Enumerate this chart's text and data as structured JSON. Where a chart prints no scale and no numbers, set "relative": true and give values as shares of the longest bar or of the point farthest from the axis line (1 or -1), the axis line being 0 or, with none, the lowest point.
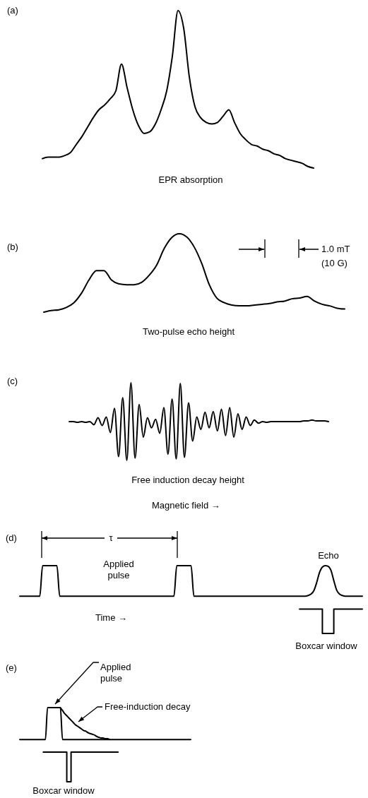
{
  "chart_data": [
    {
      "type": "line",
      "title": "(a)",
      "xlabel": "EPR absorption",
      "relative": true,
      "categories": [
        null,
        null,
        null,
        null,
        null,
        null,
        null,
        null,
        null,
        null,
        null,
        null,
        null,
        null,
        null,
        null,
        null,
        null,
        null,
        null,
        null,
        null,
        null,
        null,
        null,
        null,
        null,
        null,
        null,
        null,
        null,
        null,
        null,
        null,
        null,
        null,
        null,
        null,
        null,
        null,
        null,
        null,
        null,
        null,
        null,
        null,
        null,
        null,
        null
      ],
      "series": [
        {
          "color": "#000000",
          "values": [
            0.06,
            0.07,
            0.07,
            0.07,
            0.08,
            0.1,
            0.15,
            0.2,
            0.26,
            0.32,
            0.37,
            0.4,
            0.44,
            0.49,
            0.66,
            0.51,
            0.37,
            0.27,
            0.22,
            0.23,
            0.28,
            0.37,
            0.49,
            0.71,
            1,
            0.89,
            0.58,
            0.39,
            0.32,
            0.29,
            0.28,
            0.29,
            0.33,
            0.37,
            0.29,
            0.22,
            0.18,
            0.15,
            0.14,
            0.12,
            0.11,
            0.09,
            0.08,
            0.06,
            0.05,
            0.04,
            0.03,
            0.01,
            0
          ]
        }
      ]
    },
    {
      "type": "line",
      "title": "(b)",
      "xlabel": "Two-pulse echo height",
      "relative": true,
      "annotations": [
        "1.0 mT",
        "(10 G)"
      ],
      "categories": [
        null,
        null,
        null,
        null,
        null,
        null,
        null,
        null,
        null,
        null,
        null,
        null,
        null,
        null,
        null,
        null,
        null,
        null,
        null,
        null,
        null,
        null,
        null,
        null,
        null,
        null,
        null,
        null,
        null,
        null,
        null,
        null,
        null,
        null,
        null,
        null,
        null,
        null,
        null,
        null,
        null
      ],
      "series": [
        {
          "color": "#000000",
          "values": [
            0,
            0.02,
            0.03,
            0.06,
            0.12,
            0.24,
            0.41,
            0.53,
            0.53,
            0.41,
            0.36,
            0.35,
            0.35,
            0.38,
            0.47,
            0.6,
            0.81,
            0.95,
            1,
            0.96,
            0.83,
            0.62,
            0.35,
            0.18,
            0.12,
            0.09,
            0.08,
            0.08,
            0.09,
            0.1,
            0.11,
            0.13,
            0.14,
            0.17,
            0.18,
            0.2,
            0.14,
            0.1,
            0.08,
            0.05,
            0.04
          ]
        }
      ]
    },
    {
      "type": "line",
      "title": "(c)",
      "xlabel": "Free induction decay height",
      "relative": true,
      "annotations": [
        "Magnetic field →"
      ],
      "categories": [
        null,
        null,
        null,
        null,
        null,
        null,
        null,
        null,
        null,
        null,
        null,
        null,
        null,
        null,
        null,
        null,
        null,
        null,
        null,
        null,
        null,
        null,
        null,
        null,
        null,
        null,
        null,
        null,
        null,
        null,
        null,
        null,
        null,
        null,
        null,
        null,
        null,
        null,
        null,
        null,
        null,
        null,
        null,
        null,
        null,
        null,
        null,
        null,
        null,
        null,
        null,
        null,
        null,
        null,
        null,
        null,
        null,
        null,
        null,
        null,
        null,
        null,
        null,
        null
      ],
      "series": [
        {
          "color": "#000000",
          "values": [
            0.5,
            0.5,
            0.49,
            0.5,
            0.49,
            0.5,
            0.46,
            0.55,
            0.45,
            0.56,
            0.36,
            0.67,
            0.05,
            0.81,
            0,
            1,
            0.03,
            0.72,
            0.3,
            0.55,
            0.42,
            0.53,
            0.35,
            0.68,
            0.08,
            0.79,
            0.02,
            0.99,
            0.04,
            0.74,
            0.25,
            0.56,
            0.4,
            0.62,
            0.42,
            0.63,
            0.38,
            0.66,
            0.32,
            0.68,
            0.3,
            0.6,
            0.4,
            0.56,
            0.45,
            0.52,
            0.48,
            0.5,
            0.49,
            0.5,
            0.5,
            0.5,
            0.5,
            0.5,
            0.5,
            0.5,
            0.5,
            0.51,
            0.51,
            0.52,
            0.51,
            0.51,
            0.51,
            0.5
          ]
        }
      ]
    },
    {
      "type": "line",
      "title": "(d)",
      "relative": true,
      "annotations": [
        "τ",
        "Applied pulse",
        "Echo",
        "Time →",
        "Boxcar window"
      ],
      "categories": [
        null,
        null,
        null,
        null,
        null,
        null,
        null,
        null,
        null,
        null,
        null,
        null,
        null,
        null,
        null,
        null,
        null,
        null,
        null,
        null,
        null,
        null,
        null,
        null,
        null,
        null,
        null,
        null,
        null,
        null,
        null,
        null,
        null,
        null,
        null,
        null,
        null,
        null,
        null,
        null,
        null,
        null,
        null,
        null,
        null,
        null,
        null,
        null,
        null,
        null,
        null,
        null,
        null,
        null,
        null,
        null,
        null,
        null,
        null,
        null,
        null,
        null,
        null,
        null,
        null,
        null,
        null,
        null,
        null,
        null,
        null,
        null,
        null,
        null,
        null,
        null,
        null,
        null,
        null,
        null,
        null,
        null,
        null,
        null,
        null,
        null,
        null,
        null,
        null,
        null,
        null,
        null,
        null,
        null,
        null,
        null,
        null,
        null,
        null,
        null,
        null,
        null,
        null,
        null,
        null,
        null,
        null,
        null,
        null,
        null,
        null,
        null,
        null,
        null,
        null,
        null,
        null,
        null,
        null,
        null,
        null
      ],
      "series": [
        {
          "color": "#000000",
          "values": [
            0.55,
            0.55,
            0.55,
            0.55,
            0.55,
            0.55,
            0.55,
            0.55,
            1,
            1,
            1,
            1,
            1,
            1,
            0.55,
            0.55,
            0.55,
            0.55,
            0.55,
            0.55,
            0.55,
            0.55,
            0.55,
            0.55,
            0.55,
            0.55,
            0.55,
            0.55,
            0.55,
            0.55,
            0.55,
            0.55,
            0.55,
            0.55,
            0.55,
            0.55,
            0.55,
            0.55,
            0.55,
            0.55,
            0.55,
            0.55,
            0.55,
            0.55,
            0.55,
            0.55,
            0.55,
            0.55,
            0.55,
            0.55,
            0.55,
            0.55,
            0.55,
            0.55,
            0.55,
            1,
            1,
            1,
            1,
            1,
            1,
            0.55,
            0.55,
            0.55,
            0.55,
            0.55,
            0.55,
            0.55,
            0.55,
            0.55,
            0.55,
            0.55,
            0.55,
            0.55,
            0.55,
            0.55,
            0.55,
            0.55,
            0.55,
            0.55,
            0.55,
            0.55,
            0.55,
            0.55,
            0.55,
            0.55,
            0.55,
            0.55,
            0.55,
            0.55,
            0.55,
            0.55,
            0.55,
            0.55,
            0.55,
            0.55,
            0.55,
            0.55,
            0.55,
            0.55,
            0.55,
            0.56,
            0.58,
            0.63,
            0.75,
            0.9,
            0.98,
            1,
            0.99,
            0.93,
            0.78,
            0.64,
            0.58,
            0.56,
            0.55,
            0.55,
            0.55,
            0.55,
            0.55,
            0.55,
            0.55
          ]
        },
        {
          "color": "#000000",
          "type": "step",
          "values": [
            null,
            null,
            null,
            null,
            null,
            null,
            null,
            null,
            null,
            null,
            null,
            null,
            null,
            null,
            null,
            null,
            null,
            null,
            null,
            null,
            null,
            null,
            null,
            null,
            null,
            null,
            null,
            null,
            null,
            null,
            null,
            null,
            null,
            null,
            null,
            null,
            null,
            null,
            null,
            null,
            null,
            null,
            null,
            null,
            null,
            null,
            null,
            null,
            null,
            null,
            null,
            null,
            null,
            null,
            null,
            null,
            null,
            null,
            null,
            null,
            null,
            null,
            null,
            null,
            null,
            null,
            null,
            null,
            null,
            null,
            null,
            null,
            null,
            null,
            null,
            null,
            null,
            null,
            null,
            null,
            null,
            null,
            null,
            null,
            null,
            null,
            null,
            null,
            null,
            null,
            null,
            null,
            null,
            null,
            null,
            null,
            null,
            null,
            0.36,
            0.36,
            0.36,
            0.36,
            0.36,
            0.36,
            0.36,
            0.36,
            0,
            0,
            0,
            0,
            0.36,
            0.36,
            0.36,
            0.36,
            0.36,
            0.36,
            0.36,
            0.36,
            0.36,
            0.36,
            0.36
          ]
        }
      ]
    },
    {
      "type": "line",
      "title": "(e)",
      "relative": true,
      "annotations": [
        "Applied pulse",
        "Free-induction decay",
        "Boxcar window"
      ],
      "categories": [
        null,
        null,
        null,
        null,
        null,
        null,
        null,
        null,
        null,
        null,
        null,
        null,
        null,
        null,
        null,
        null,
        null,
        null,
        null,
        null,
        null,
        null,
        null,
        null,
        null,
        null,
        null,
        null,
        null,
        null,
        null,
        null,
        null,
        null,
        null,
        null,
        null,
        null,
        null,
        null,
        null,
        null,
        null,
        null,
        null,
        null,
        null,
        null,
        null,
        null,
        null,
        null,
        null,
        null,
        null,
        null,
        null,
        null,
        null,
        null,
        null,
        null,
        null,
        null,
        null,
        null,
        null,
        null,
        null,
        null,
        null,
        null,
        null,
        null,
        null,
        null,
        null,
        null,
        null,
        null,
        null
      ],
      "series": [
        {
          "color": "#000000",
          "values": [
            0.57,
            0.57,
            0.57,
            0.57,
            0.57,
            0.57,
            0.57,
            0.57,
            0.57,
            0.57,
            0.57,
            0.57,
            0.57,
            1,
            1,
            1,
            1,
            1,
            1,
            1,
            0.57,
            0.57,
            0.57,
            0.57,
            0.57,
            0.57,
            0.57,
            0.57,
            0.57,
            0.57,
            0.57,
            0.57,
            0.57,
            0.57,
            0.57,
            0.57,
            0.57,
            0.57,
            0.57,
            0.57,
            0.57,
            0.57,
            0.57,
            0.57,
            0.57,
            0.57,
            0.57,
            0.57,
            0.57,
            0.57,
            0.57,
            0.57,
            0.57,
            0.57,
            0.57,
            0.57,
            0.57,
            0.57,
            0.57,
            0.57,
            0.57,
            0.57,
            0.57,
            0.57,
            0.57,
            0.57,
            0.57,
            0.57,
            0.57,
            0.57,
            0.57,
            0.57,
            0.57,
            0.57,
            0.57,
            0.57,
            0.57,
            0.57,
            0.57,
            0.57,
            0.57
          ]
        },
        {
          "color": "#000000",
          "values": [
            null,
            null,
            null,
            null,
            null,
            null,
            null,
            null,
            null,
            null,
            null,
            null,
            null,
            null,
            null,
            null,
            null,
            null,
            null,
            1,
            0.96,
            0.92,
            0.89,
            0.86,
            0.83,
            0.8,
            0.77,
            0.75,
            0.73,
            0.71,
            0.69,
            0.68,
            0.66,
            0.65,
            0.64,
            0.63,
            0.61,
            0.6,
            0.59,
            0.59,
            0.58,
            0.58,
            0.57,
            null,
            null,
            null,
            null,
            null,
            null,
            null,
            null,
            null,
            null,
            null,
            null,
            null,
            null,
            null,
            null,
            null,
            null,
            null,
            null,
            null,
            null,
            null,
            null,
            null,
            null,
            null,
            null,
            null,
            null,
            null,
            null,
            null,
            null,
            null,
            null,
            null,
            null
          ]
        },
        {
          "color": "#000000",
          "type": "step",
          "values": [
            null,
            null,
            null,
            null,
            null,
            null,
            null,
            null,
            null,
            null,
            null,
            0.4,
            0.4,
            0.4,
            0.4,
            0.4,
            0.4,
            0.4,
            0.4,
            0.4,
            0.4,
            0.4,
            0,
            0,
            0.4,
            0.4,
            0.4,
            0.4,
            0.4,
            0.4,
            0.4,
            0.4,
            0.4,
            0.4,
            0.4,
            0.4,
            0.4,
            0.4,
            0.4,
            0.4,
            0.4,
            0.4,
            0.4,
            0.4,
            0.4,
            0.4,
            0.4,
            null,
            null,
            null,
            null,
            null,
            null,
            null,
            null,
            null,
            null,
            null,
            null,
            null,
            null,
            null,
            null,
            null,
            null,
            null,
            null,
            null,
            null,
            null,
            null,
            null,
            null,
            null,
            null,
            null,
            null,
            null,
            null,
            null,
            null
          ]
        }
      ]
    }
  ]
}
